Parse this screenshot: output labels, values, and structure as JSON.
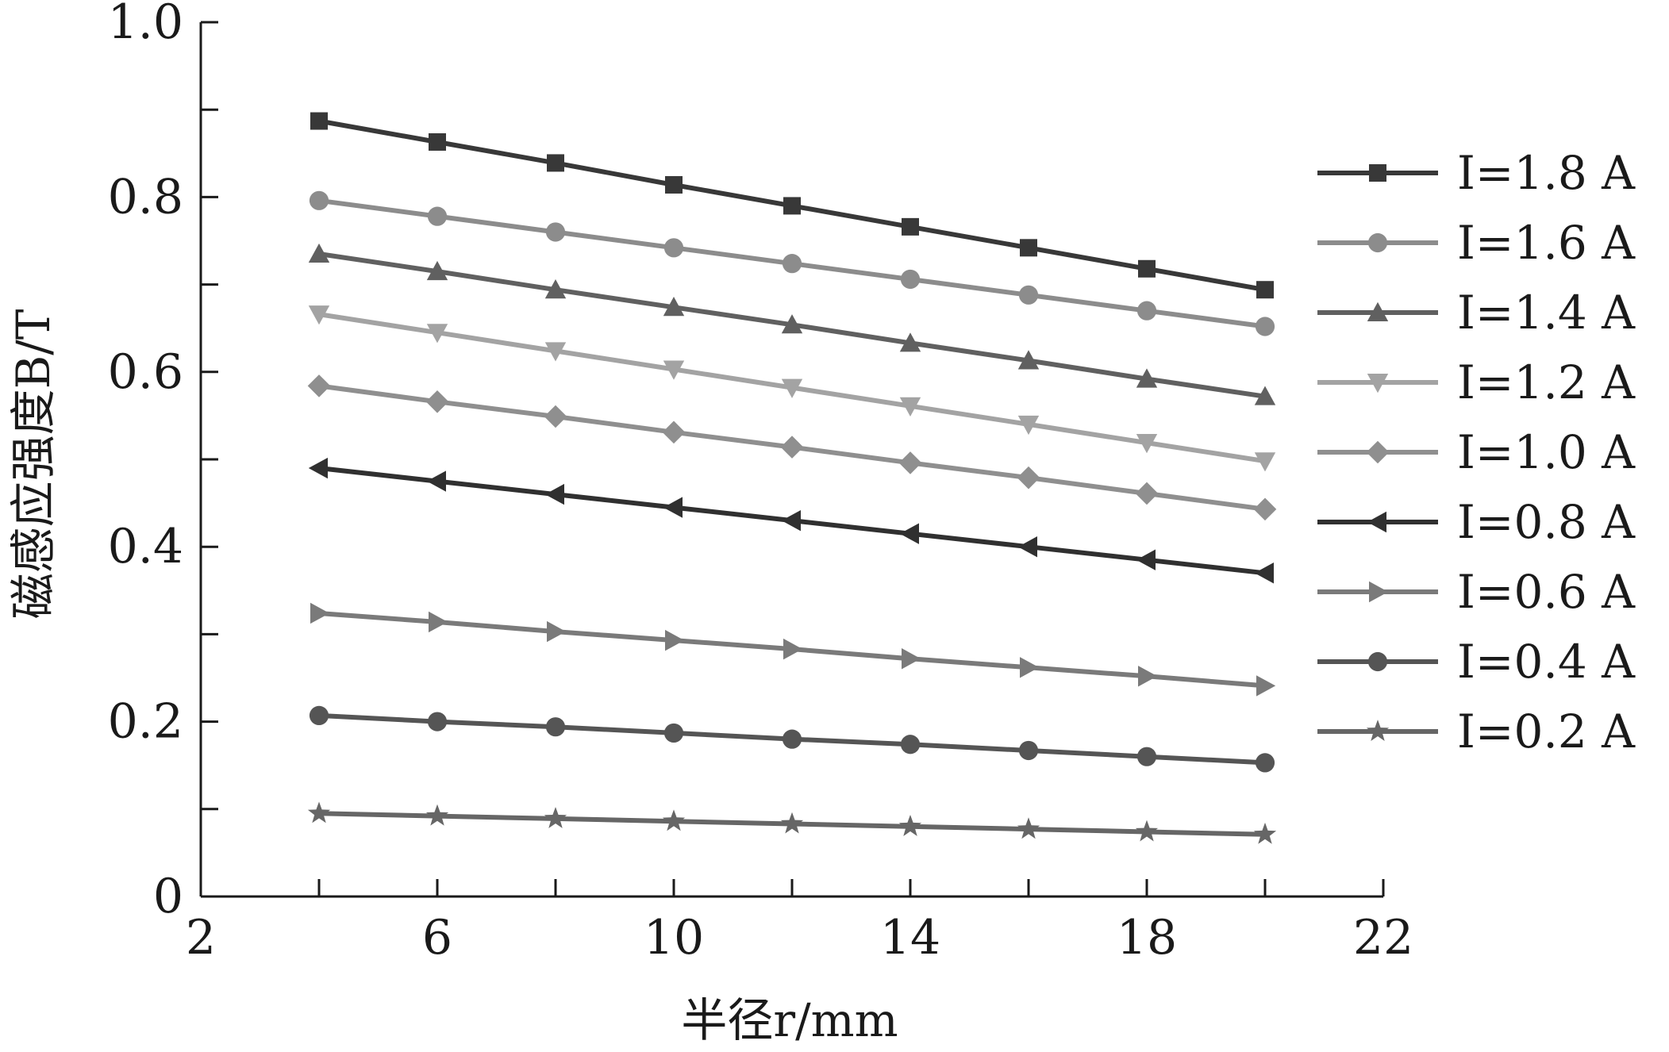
{
  "chart_data": {
    "type": "line",
    "title": "",
    "xlabel": "半径r/mm",
    "ylabel": "磁感应强度B/T",
    "xlim": [
      2,
      22
    ],
    "ylim": [
      0,
      1.0
    ],
    "x_ticks": [
      "2",
      "6",
      "10",
      "14",
      "18",
      "22"
    ],
    "y_ticks": [
      "0",
      "0.2",
      "0.4",
      "0.6",
      "0.8",
      "1.0"
    ],
    "grid": false,
    "legend_position": "right",
    "x": [
      4,
      6,
      8,
      10,
      12,
      14,
      16,
      18,
      20
    ],
    "series": [
      {
        "name": "I=1.8 A",
        "marker": "square",
        "color": "#383838",
        "values": [
          0.887,
          0.863,
          0.839,
          0.814,
          0.79,
          0.766,
          0.742,
          0.718,
          0.694
        ]
      },
      {
        "name": "I=1.6 A",
        "marker": "circle",
        "color": "#8c8c8c",
        "values": [
          0.796,
          0.778,
          0.76,
          0.742,
          0.724,
          0.706,
          0.688,
          0.67,
          0.652
        ]
      },
      {
        "name": "I=1.4 A",
        "marker": "triangle-up",
        "color": "#606060",
        "values": [
          0.735,
          0.715,
          0.694,
          0.674,
          0.654,
          0.633,
          0.613,
          0.592,
          0.572
        ]
      },
      {
        "name": "I=1.2 A",
        "marker": "triangle-down",
        "color": "#a3a3a3",
        "values": [
          0.666,
          0.645,
          0.624,
          0.603,
          0.582,
          0.561,
          0.54,
          0.519,
          0.498
        ]
      },
      {
        "name": "I=1.0 A",
        "marker": "diamond",
        "color": "#8f8f8f",
        "values": [
          0.584,
          0.566,
          0.549,
          0.531,
          0.514,
          0.496,
          0.479,
          0.461,
          0.443
        ]
      },
      {
        "name": "I=0.8 A",
        "marker": "triangle-left",
        "color": "#303030",
        "values": [
          0.49,
          0.475,
          0.46,
          0.445,
          0.43,
          0.415,
          0.4,
          0.385,
          0.37
        ]
      },
      {
        "name": "I=0.6 A",
        "marker": "triangle-right",
        "color": "#7a7a7a",
        "values": [
          0.324,
          0.314,
          0.303,
          0.293,
          0.283,
          0.272,
          0.262,
          0.252,
          0.241
        ]
      },
      {
        "name": "I=0.4 A",
        "marker": "circle",
        "color": "#555555",
        "values": [
          0.207,
          0.2,
          0.194,
          0.187,
          0.18,
          0.174,
          0.167,
          0.16,
          0.153
        ]
      },
      {
        "name": "I=0.2 A",
        "marker": "star",
        "color": "#666666",
        "values": [
          0.095,
          0.092,
          0.089,
          0.086,
          0.083,
          0.08,
          0.077,
          0.074,
          0.071
        ]
      }
    ]
  }
}
